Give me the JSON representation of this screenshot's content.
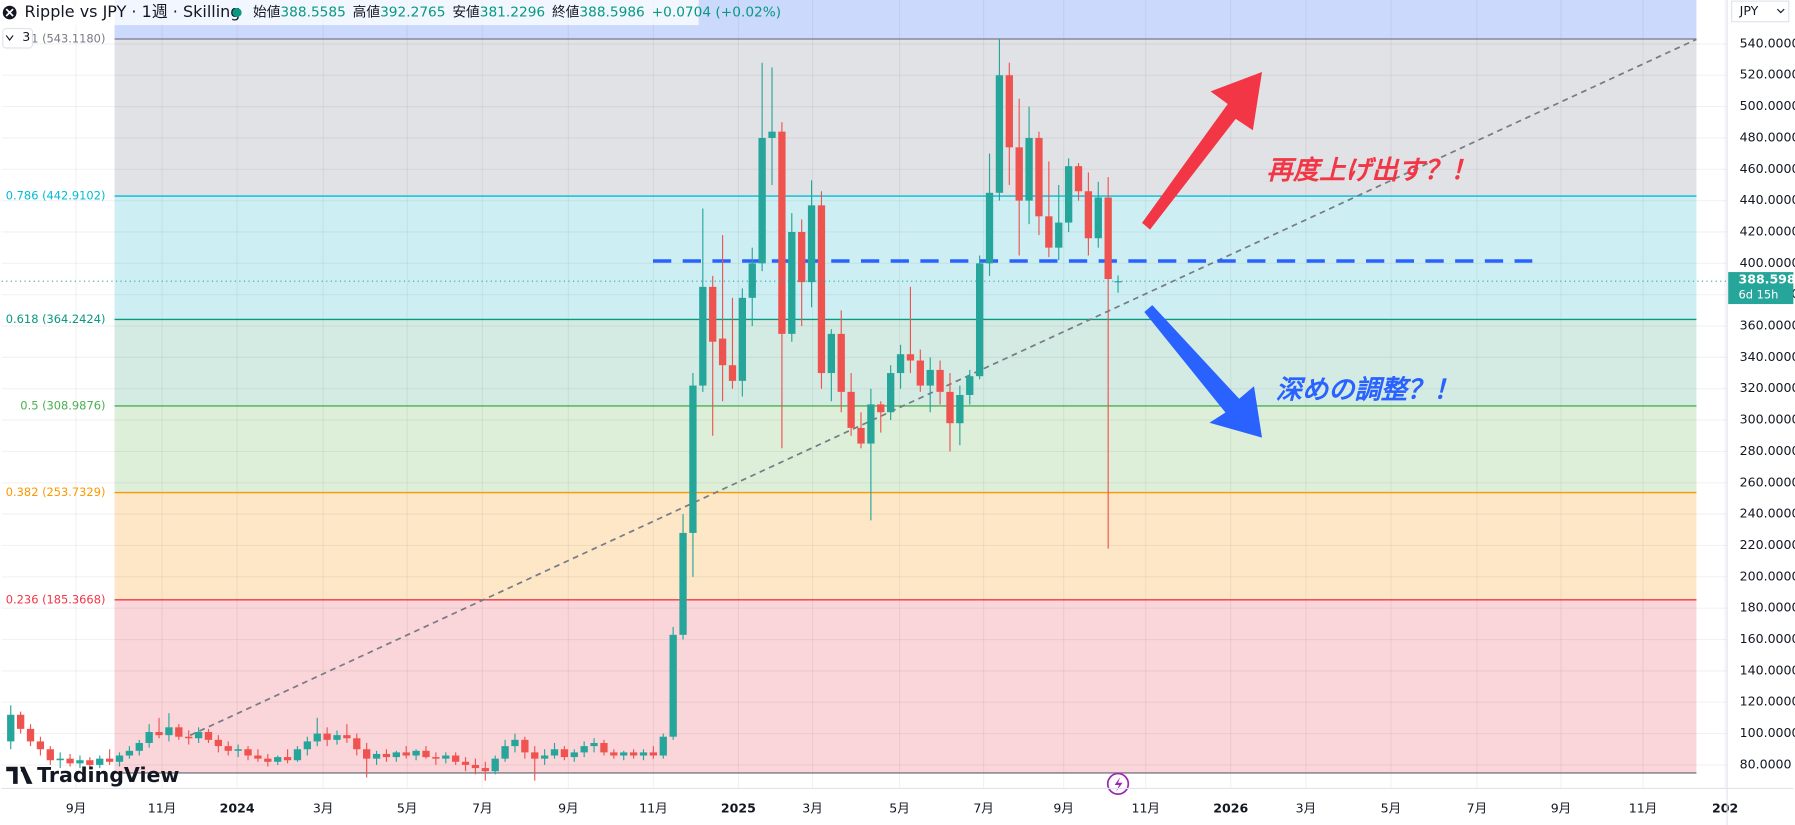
{
  "header": {
    "symbol": "Ripple vs JPY · 1週 · Skilling",
    "ohlc_labels": [
      "始値",
      "高値",
      "安値",
      "終値"
    ],
    "change": "+0.0704 (+0.02%)",
    "layer_count": "3",
    "currency": "JPY",
    "countdown": "6d 15h",
    "brand": "TradingView"
  },
  "chart_data": {
    "type": "candlestick",
    "open": [
      95,
      112,
      103,
      95,
      90,
      83,
      84,
      81,
      83,
      80,
      84,
      82,
      86,
      89,
      94,
      101,
      99,
      104,
      98,
      97,
      101,
      96,
      92,
      89,
      90,
      86,
      84,
      82,
      85,
      83,
      90,
      95,
      100,
      96,
      99,
      97,
      90,
      84,
      87,
      85,
      88,
      86,
      89,
      85,
      84,
      86,
      82,
      80,
      78,
      76,
      84,
      92,
      96,
      88,
      84,
      86,
      90,
      85,
      88,
      92,
      94,
      88,
      86,
      88,
      86,
      88,
      86,
      98,
      163,
      228,
      322,
      385,
      352,
      335,
      325,
      378,
      400,
      480,
      484,
      355,
      420,
      388,
      437,
      330,
      355,
      318,
      295,
      285,
      310,
      305,
      330,
      342,
      338,
      322,
      332,
      318,
      298,
      316,
      328,
      400,
      445,
      520,
      474,
      440,
      480,
      430,
      410,
      426,
      462,
      446,
      416,
      442,
      388.5585
    ],
    "high": [
      118,
      114,
      106,
      98,
      92,
      88,
      87,
      86,
      85,
      86,
      90,
      88,
      92,
      96,
      106,
      110,
      113,
      106,
      102,
      104,
      103,
      99,
      95,
      93,
      92,
      90,
      87,
      86,
      90,
      92,
      98,
      110,
      104,
      102,
      106,
      100,
      94,
      89,
      90,
      89,
      92,
      90,
      92,
      88,
      88,
      88,
      85,
      84,
      82,
      86,
      96,
      100,
      98,
      92,
      90,
      94,
      92,
      90,
      95,
      97,
      96,
      90,
      89,
      90,
      90,
      92,
      100,
      168,
      240,
      330,
      435,
      392,
      418,
      378,
      384,
      410,
      528,
      525,
      490,
      432,
      428,
      453,
      446,
      358,
      370,
      330,
      305,
      320,
      312,
      335,
      348,
      385,
      345,
      340,
      338,
      330,
      322,
      332,
      405,
      470,
      543,
      528,
      505,
      500,
      484,
      465,
      450,
      467,
      464,
      458,
      452,
      455,
      392.2765
    ],
    "low": [
      90,
      100,
      92,
      86,
      80,
      78,
      79,
      78,
      77,
      78,
      80,
      79,
      84,
      86,
      91,
      97,
      95,
      96,
      93,
      94,
      94,
      88,
      86,
      85,
      83,
      82,
      79,
      80,
      81,
      82,
      86,
      92,
      92,
      93,
      94,
      86,
      72,
      80,
      82,
      82,
      84,
      83,
      84,
      80,
      81,
      80,
      76,
      74,
      70,
      74,
      82,
      88,
      84,
      70,
      80,
      84,
      83,
      82,
      85,
      88,
      86,
      84,
      83,
      84,
      83,
      84,
      84,
      96,
      160,
      200,
      318,
      290,
      312,
      320,
      315,
      360,
      395,
      450,
      282,
      350,
      360,
      372,
      320,
      312,
      305,
      290,
      282,
      236,
      292,
      300,
      320,
      330,
      318,
      305,
      310,
      280,
      284,
      310,
      326,
      392,
      440,
      450,
      405,
      425,
      418,
      404,
      402,
      420,
      440,
      405,
      410,
      218,
      381.2296
    ],
    "close": [
      112,
      103,
      95,
      90,
      83,
      84,
      81,
      83,
      80,
      84,
      82,
      86,
      89,
      94,
      101,
      99,
      104,
      98,
      97,
      101,
      96,
      92,
      89,
      90,
      86,
      84,
      82,
      85,
      83,
      90,
      95,
      100,
      96,
      99,
      97,
      90,
      84,
      87,
      85,
      88,
      86,
      89,
      85,
      84,
      86,
      82,
      80,
      78,
      76,
      84,
      92,
      96,
      88,
      84,
      86,
      90,
      85,
      88,
      92,
      94,
      88,
      86,
      88,
      86,
      88,
      86,
      98,
      163,
      228,
      322,
      385,
      350,
      335,
      325,
      378,
      400,
      480,
      484,
      355,
      420,
      388,
      437,
      330,
      355,
      318,
      295,
      285,
      310,
      305,
      330,
      342,
      338,
      322,
      332,
      318,
      298,
      316,
      328,
      400,
      445,
      520,
      474,
      440,
      480,
      430,
      410,
      426,
      462,
      446,
      416,
      442,
      390,
      388.5986
    ],
    "up_color": "#26a69a",
    "down_color": "#ef5350",
    "xlim": [
      -0.92,
      173.6
    ],
    "xticks": [
      {
        "value": 6.6,
        "label": "9月"
      },
      {
        "value": 15.3,
        "label": "11月"
      },
      {
        "value": 22.9,
        "label": "2024"
      },
      {
        "value": 31.6,
        "label": "3月"
      },
      {
        "value": 40.1,
        "label": "5月"
      },
      {
        "value": 47.7,
        "label": "7月"
      },
      {
        "value": 56.4,
        "label": "9月"
      },
      {
        "value": 65.0,
        "label": "11月"
      },
      {
        "value": 73.6,
        "label": "2025"
      },
      {
        "value": 81.1,
        "label": "3月"
      },
      {
        "value": 89.9,
        "label": "5月"
      },
      {
        "value": 98.4,
        "label": "7月"
      },
      {
        "value": 106.5,
        "label": "9月"
      },
      {
        "value": 114.8,
        "label": "11月"
      },
      {
        "value": 123.4,
        "label": "2026"
      },
      {
        "value": 131.0,
        "label": "3月"
      },
      {
        "value": 139.6,
        "label": "5月"
      },
      {
        "value": 148.3,
        "label": "7月"
      },
      {
        "value": 156.8,
        "label": "9月"
      },
      {
        "value": 165.1,
        "label": "11月"
      },
      {
        "value": 173.4,
        "label": "202"
      }
    ],
    "ylim": [
      65,
      568
    ],
    "yticks": [
      {
        "value": 80,
        "label": "80.0000"
      },
      {
        "value": 100,
        "label": "100.0000"
      },
      {
        "value": 120,
        "label": "120.0000"
      },
      {
        "value": 140,
        "label": "140.0000"
      },
      {
        "value": 160,
        "label": "160.0000"
      },
      {
        "value": 180,
        "label": "180.0000"
      },
      {
        "value": 200,
        "label": "200.0000"
      },
      {
        "value": 220,
        "label": "220.0000"
      },
      {
        "value": 240,
        "label": "240.0000"
      },
      {
        "value": 260,
        "label": "260.0000"
      },
      {
        "value": 280,
        "label": "280.0000"
      },
      {
        "value": 300,
        "label": "300.0000"
      },
      {
        "value": 320,
        "label": "320.0000"
      },
      {
        "value": 340,
        "label": "340.0000"
      },
      {
        "value": 360,
        "label": "360.0000"
      },
      {
        "value": 380,
        "label": "380.0000"
      },
      {
        "value": 400,
        "label": "400.0000"
      },
      {
        "value": 420,
        "label": "420.0000"
      },
      {
        "value": 440,
        "label": "440.0000"
      },
      {
        "value": 460,
        "label": "460.0000"
      },
      {
        "value": 480,
        "label": "480.0000"
      },
      {
        "value": 500,
        "label": "500.0000"
      },
      {
        "value": 520,
        "label": "520.0000"
      },
      {
        "value": 540,
        "label": "540.0000"
      }
    ],
    "grid": true,
    "fib": {
      "x": [
        10.5,
        170.5
      ],
      "above_fill": "#cbd9fd",
      "levels": [
        {
          "value": 543.118,
          "label": "1 (543.1180)",
          "color": "#787b86",
          "fill": "#e1e2e6"
        },
        {
          "value": 442.9102,
          "label": "0.786 (442.9102)",
          "color": "#00bcd4",
          "fill": "#cdeff4"
        },
        {
          "value": 364.2424,
          "label": "0.618 (364.2424)",
          "color": "#089981",
          "fill": "#d3ebe3"
        },
        {
          "value": 308.9876,
          "label": "0.5 (308.9876)",
          "color": "#4caf50",
          "fill": "#ddefd8"
        },
        {
          "value": 253.7329,
          "label": "0.382 (253.7329)",
          "color": "#ff9800",
          "fill": "#fde7c7"
        },
        {
          "value": 185.3668,
          "label": "0.236 (185.3668)",
          "color": "#f23645",
          "fill": "#fad5d9"
        },
        {
          "value": 74.86,
          "color": "#787b86"
        }
      ]
    },
    "trendline": {
      "x": [
        18.15,
        170.5
      ],
      "y": [
        98.9,
        542.9
      ],
      "color": "#787b86"
    },
    "hline": {
      "x": [
        64.96,
        153.9
      ],
      "y": 401.5,
      "color": "#2962ff"
    },
    "annotations": [
      {
        "text": "再度上げ出す？！",
        "color": "#f23645"
      },
      {
        "text": "深めの調整？！",
        "color": "#2962ff"
      }
    ]
  }
}
